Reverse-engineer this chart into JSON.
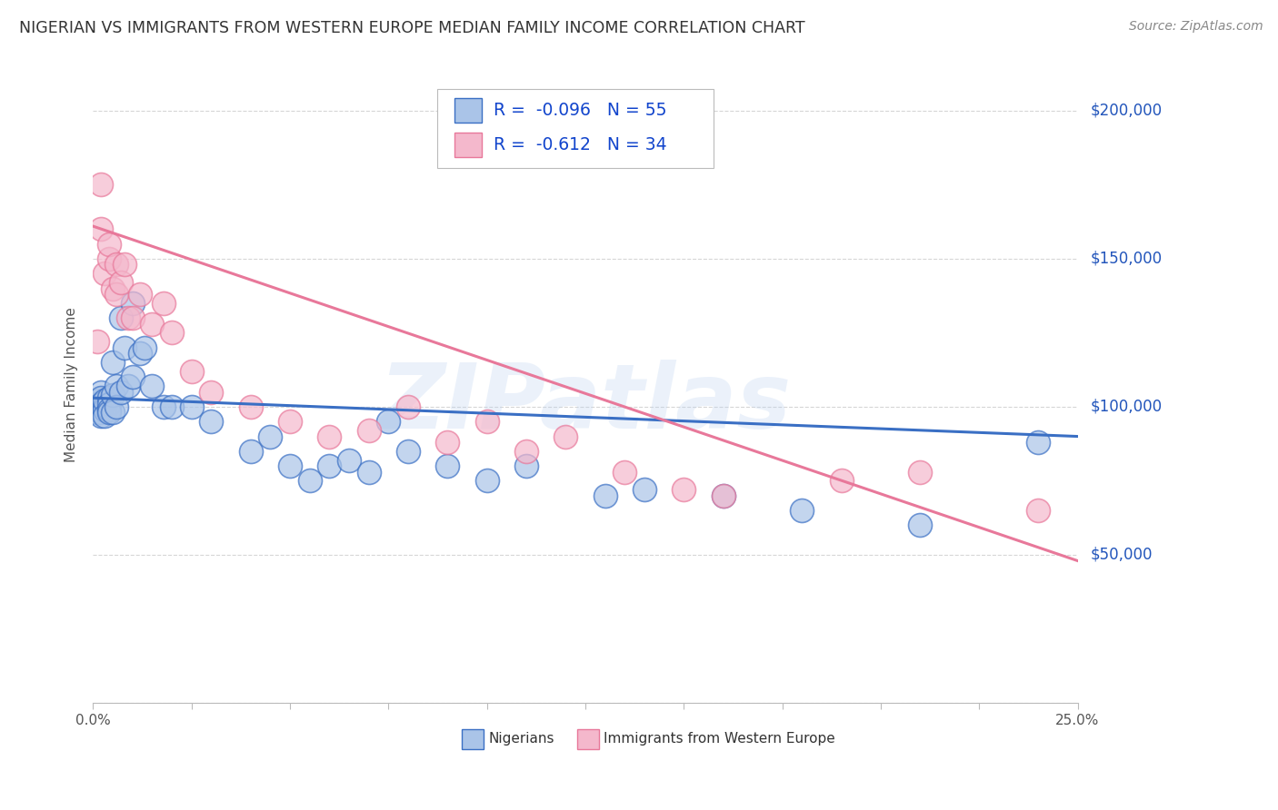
{
  "title": "NIGERIAN VS IMMIGRANTS FROM WESTERN EUROPE MEDIAN FAMILY INCOME CORRELATION CHART",
  "source": "Source: ZipAtlas.com",
  "ylabel": "Median Family Income",
  "xlim": [
    0.0,
    0.25
  ],
  "ylim": [
    0,
    215000
  ],
  "background_color": "#ffffff",
  "grid_color": "#cccccc",
  "watermark": "ZIPatlas",
  "nigerians_color": "#aac4e8",
  "western_europe_color": "#f4b8cc",
  "nigeria_trend_color": "#3a6fc4",
  "western_trend_color": "#e8789a",
  "legend_r1": "-0.096",
  "legend_n1": "55",
  "legend_r2": "-0.612",
  "legend_n2": "34",
  "nigeria_trend_x0": 0.0,
  "nigeria_trend_y0": 103000,
  "nigeria_trend_x1": 0.25,
  "nigeria_trend_y1": 90000,
  "western_trend_x0": 0.0,
  "western_trend_y0": 161000,
  "western_trend_x1": 0.25,
  "western_trend_y1": 48000,
  "nigerians_x": [
    0.001,
    0.001,
    0.001,
    0.001,
    0.001,
    0.002,
    0.002,
    0.002,
    0.002,
    0.002,
    0.002,
    0.003,
    0.003,
    0.003,
    0.003,
    0.004,
    0.004,
    0.004,
    0.004,
    0.005,
    0.005,
    0.005,
    0.006,
    0.006,
    0.007,
    0.007,
    0.008,
    0.009,
    0.01,
    0.01,
    0.012,
    0.013,
    0.015,
    0.018,
    0.02,
    0.025,
    0.03,
    0.04,
    0.045,
    0.05,
    0.055,
    0.06,
    0.065,
    0.07,
    0.075,
    0.08,
    0.09,
    0.1,
    0.11,
    0.13,
    0.14,
    0.16,
    0.18,
    0.21,
    0.24
  ],
  "nigerians_y": [
    100000,
    102000,
    98000,
    99000,
    101000,
    105000,
    103000,
    100000,
    98000,
    97000,
    101000,
    100000,
    99000,
    102000,
    97000,
    103000,
    101000,
    99000,
    98000,
    115000,
    104000,
    98000,
    107000,
    100000,
    130000,
    105000,
    120000,
    107000,
    135000,
    110000,
    118000,
    120000,
    107000,
    100000,
    100000,
    100000,
    95000,
    85000,
    90000,
    80000,
    75000,
    80000,
    82000,
    78000,
    95000,
    85000,
    80000,
    75000,
    80000,
    70000,
    72000,
    70000,
    65000,
    60000,
    88000
  ],
  "western_x": [
    0.001,
    0.002,
    0.002,
    0.003,
    0.004,
    0.004,
    0.005,
    0.006,
    0.006,
    0.007,
    0.008,
    0.009,
    0.01,
    0.012,
    0.015,
    0.018,
    0.02,
    0.025,
    0.03,
    0.04,
    0.05,
    0.06,
    0.07,
    0.08,
    0.09,
    0.1,
    0.11,
    0.12,
    0.135,
    0.15,
    0.16,
    0.19,
    0.21,
    0.24
  ],
  "western_y": [
    122000,
    175000,
    160000,
    145000,
    150000,
    155000,
    140000,
    148000,
    138000,
    142000,
    148000,
    130000,
    130000,
    138000,
    128000,
    135000,
    125000,
    112000,
    105000,
    100000,
    95000,
    90000,
    92000,
    100000,
    88000,
    95000,
    85000,
    90000,
    78000,
    72000,
    70000,
    75000,
    78000,
    65000
  ]
}
